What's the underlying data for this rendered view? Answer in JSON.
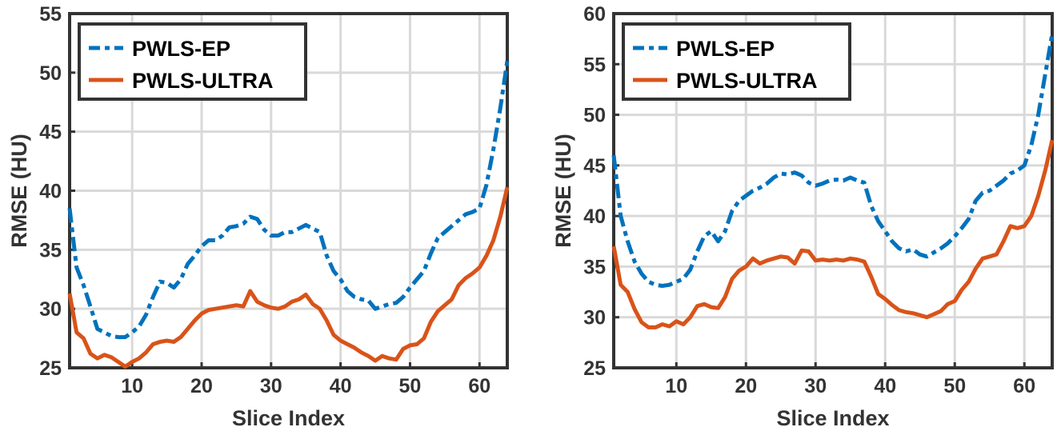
{
  "colors": {
    "grid": "#d9d9d9",
    "axis": "#333333",
    "series_ep": "#0072BD",
    "series_ultra": "#D95319"
  },
  "chart_data": [
    {
      "type": "line",
      "xlabel": "Slice Index",
      "ylabel": "RMSE (HU)",
      "xlim": [
        1,
        64
      ],
      "ylim": [
        25,
        55
      ],
      "x_ticks": [
        10,
        20,
        30,
        40,
        50,
        60
      ],
      "y_ticks": [
        25,
        30,
        35,
        40,
        45,
        50,
        55
      ],
      "grid": true,
      "legend_position": "top-left",
      "x": [
        1,
        2,
        3,
        4,
        5,
        6,
        7,
        8,
        9,
        10,
        11,
        12,
        13,
        14,
        15,
        16,
        17,
        18,
        19,
        20,
        21,
        22,
        23,
        24,
        25,
        26,
        27,
        28,
        29,
        30,
        31,
        32,
        33,
        34,
        35,
        36,
        37,
        38,
        39,
        40,
        41,
        42,
        43,
        44,
        45,
        46,
        47,
        48,
        49,
        50,
        51,
        52,
        53,
        54,
        55,
        56,
        57,
        58,
        59,
        60,
        61,
        62,
        63,
        64
      ],
      "series": [
        {
          "name": "PWLS-EP",
          "style": "dash-dot",
          "values": [
            38.5,
            33.5,
            32.0,
            30.2,
            28.3,
            28.0,
            27.7,
            27.6,
            27.6,
            28.0,
            28.5,
            29.5,
            31.0,
            32.3,
            32.2,
            31.8,
            32.5,
            33.8,
            34.5,
            35.3,
            35.8,
            35.8,
            36.2,
            36.9,
            37.0,
            37.2,
            37.8,
            37.6,
            36.7,
            36.2,
            36.2,
            36.5,
            36.5,
            36.8,
            37.1,
            36.8,
            36.5,
            34.5,
            33.2,
            32.5,
            31.5,
            31.0,
            30.8,
            30.7,
            30.0,
            30.2,
            30.4,
            30.5,
            31.0,
            31.8,
            32.5,
            33.2,
            34.7,
            36.0,
            36.5,
            37.0,
            37.5,
            38.0,
            38.2,
            38.5,
            40.5,
            43.5,
            47.0,
            51.0
          ]
        },
        {
          "name": "PWLS-ULTRA",
          "style": "solid",
          "values": [
            31.3,
            28.0,
            27.5,
            26.2,
            25.8,
            26.1,
            25.9,
            25.5,
            25.1,
            25.5,
            25.8,
            26.3,
            27.0,
            27.2,
            27.3,
            27.2,
            27.6,
            28.3,
            29.0,
            29.6,
            29.9,
            30.0,
            30.1,
            30.2,
            30.3,
            30.2,
            31.5,
            30.6,
            30.3,
            30.1,
            30.0,
            30.2,
            30.6,
            30.8,
            31.2,
            30.4,
            30.0,
            29.0,
            27.8,
            27.3,
            27.0,
            26.7,
            26.3,
            26.0,
            25.6,
            26.0,
            25.8,
            25.7,
            26.6,
            26.9,
            27.0,
            27.5,
            28.9,
            29.8,
            30.3,
            30.8,
            32.0,
            32.6,
            33.0,
            33.5,
            34.5,
            35.8,
            37.8,
            40.3
          ]
        }
      ]
    },
    {
      "type": "line",
      "xlabel": "Slice Index",
      "ylabel": "RMSE (HU)",
      "xlim": [
        1,
        64
      ],
      "ylim": [
        25,
        60
      ],
      "x_ticks": [
        10,
        20,
        30,
        40,
        50,
        60
      ],
      "y_ticks": [
        25,
        30,
        35,
        40,
        45,
        50,
        55,
        60
      ],
      "grid": true,
      "legend_position": "top-left",
      "x": [
        1,
        2,
        3,
        4,
        5,
        6,
        7,
        8,
        9,
        10,
        11,
        12,
        13,
        14,
        15,
        16,
        17,
        18,
        19,
        20,
        21,
        22,
        23,
        24,
        25,
        26,
        27,
        28,
        29,
        30,
        31,
        32,
        33,
        34,
        35,
        36,
        37,
        38,
        39,
        40,
        41,
        42,
        43,
        44,
        45,
        46,
        47,
        48,
        49,
        50,
        51,
        52,
        53,
        54,
        55,
        56,
        57,
        58,
        59,
        60,
        61,
        62,
        63,
        64
      ],
      "series": [
        {
          "name": "PWLS-EP",
          "style": "dash-dot",
          "values": [
            46.0,
            40.0,
            37.5,
            35.5,
            34.3,
            33.5,
            33.2,
            33.1,
            33.2,
            33.5,
            33.8,
            34.7,
            36.5,
            38.0,
            38.5,
            37.5,
            38.5,
            40.5,
            41.5,
            42.0,
            42.5,
            42.8,
            43.2,
            43.8,
            44.2,
            44.1,
            44.3,
            44.0,
            43.3,
            43.0,
            43.2,
            43.5,
            43.6,
            43.5,
            43.8,
            43.5,
            43.3,
            41.0,
            39.5,
            38.5,
            37.5,
            36.8,
            36.5,
            36.7,
            36.2,
            36.0,
            36.4,
            36.8,
            37.3,
            38.0,
            38.8,
            39.7,
            41.5,
            42.3,
            42.5,
            43.0,
            43.5,
            44.2,
            44.5,
            45.0,
            47.0,
            50.0,
            54.0,
            58.0
          ]
        },
        {
          "name": "PWLS-ULTRA",
          "style": "solid",
          "values": [
            37.0,
            33.2,
            32.5,
            30.8,
            29.5,
            29.0,
            29.0,
            29.3,
            29.1,
            29.6,
            29.3,
            30.0,
            31.1,
            31.3,
            31.0,
            30.9,
            32.0,
            33.8,
            34.6,
            35.0,
            35.8,
            35.3,
            35.6,
            35.8,
            36.0,
            35.9,
            35.3,
            36.6,
            36.5,
            35.6,
            35.7,
            35.6,
            35.7,
            35.6,
            35.8,
            35.7,
            35.5,
            34.0,
            32.3,
            31.8,
            31.2,
            30.7,
            30.5,
            30.4,
            30.2,
            30.0,
            30.3,
            30.6,
            31.3,
            31.6,
            32.7,
            33.5,
            34.8,
            35.8,
            36.0,
            36.2,
            37.5,
            39.0,
            38.8,
            39.0,
            40.0,
            42.0,
            44.5,
            47.5
          ]
        }
      ]
    }
  ]
}
